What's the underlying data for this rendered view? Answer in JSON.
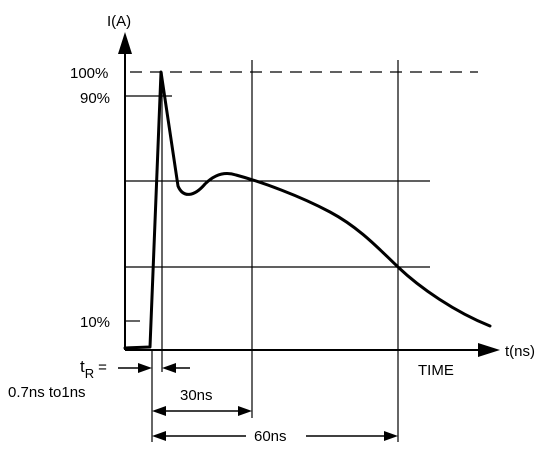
{
  "labels": {
    "y_axis": "I(A)",
    "x_axis": "t(ns)",
    "time": "TIME",
    "pct_100": "100%",
    "pct_90": "90%",
    "pct_10": "10%",
    "tr_t": "t",
    "tr_sub": "R",
    "tr_eq": "=",
    "tr_range": "0.7ns to1ns",
    "dim_30": "30ns",
    "dim_60": "60ns"
  }
}
